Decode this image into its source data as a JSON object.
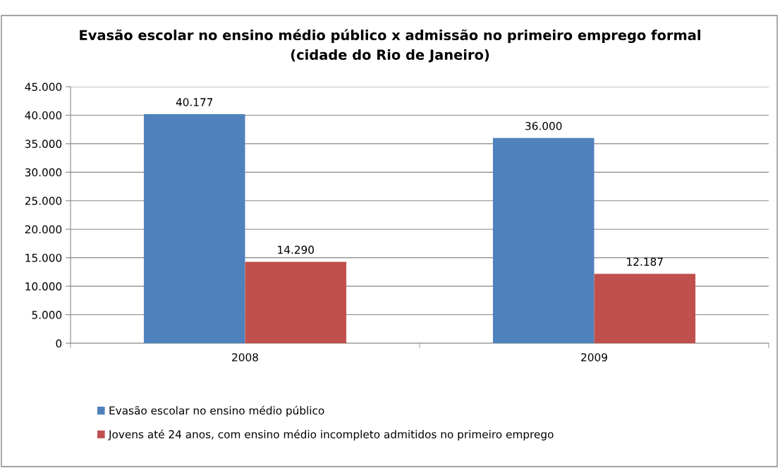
{
  "chart_data": {
    "type": "bar",
    "title": "Evasão escolar no ensino médio público x admissão no primeiro emprego formal\n(cidade do Rio de Janeiro)",
    "categories": [
      "2008",
      "2009"
    ],
    "series": [
      {
        "name": "Evasão escolar no ensino médio público",
        "color": "#4f81bd",
        "values": [
          40177,
          36000
        ],
        "value_labels": [
          "40.177",
          "36.000"
        ]
      },
      {
        "name": "Jovens até 24 anos, com ensino médio incompleto admitidos no primeiro emprego",
        "color": "#c0504d",
        "values": [
          14290,
          12187
        ],
        "value_labels": [
          "14.290",
          "12.187"
        ]
      }
    ],
    "ylim": [
      0,
      45000
    ],
    "yticks": [
      {
        "value": 0,
        "label": "0"
      },
      {
        "value": 5000,
        "label": "5.000"
      },
      {
        "value": 10000,
        "label": "10.000"
      },
      {
        "value": 15000,
        "label": "15.000"
      },
      {
        "value": 20000,
        "label": "20.000"
      },
      {
        "value": 25000,
        "label": "25.000"
      },
      {
        "value": 30000,
        "label": "30.000"
      },
      {
        "value": 35000,
        "label": "35.000"
      },
      {
        "value": 40000,
        "label": "40.000"
      },
      {
        "value": 45000,
        "label": "45.000"
      }
    ],
    "grid": "y",
    "legend": "bottom"
  }
}
